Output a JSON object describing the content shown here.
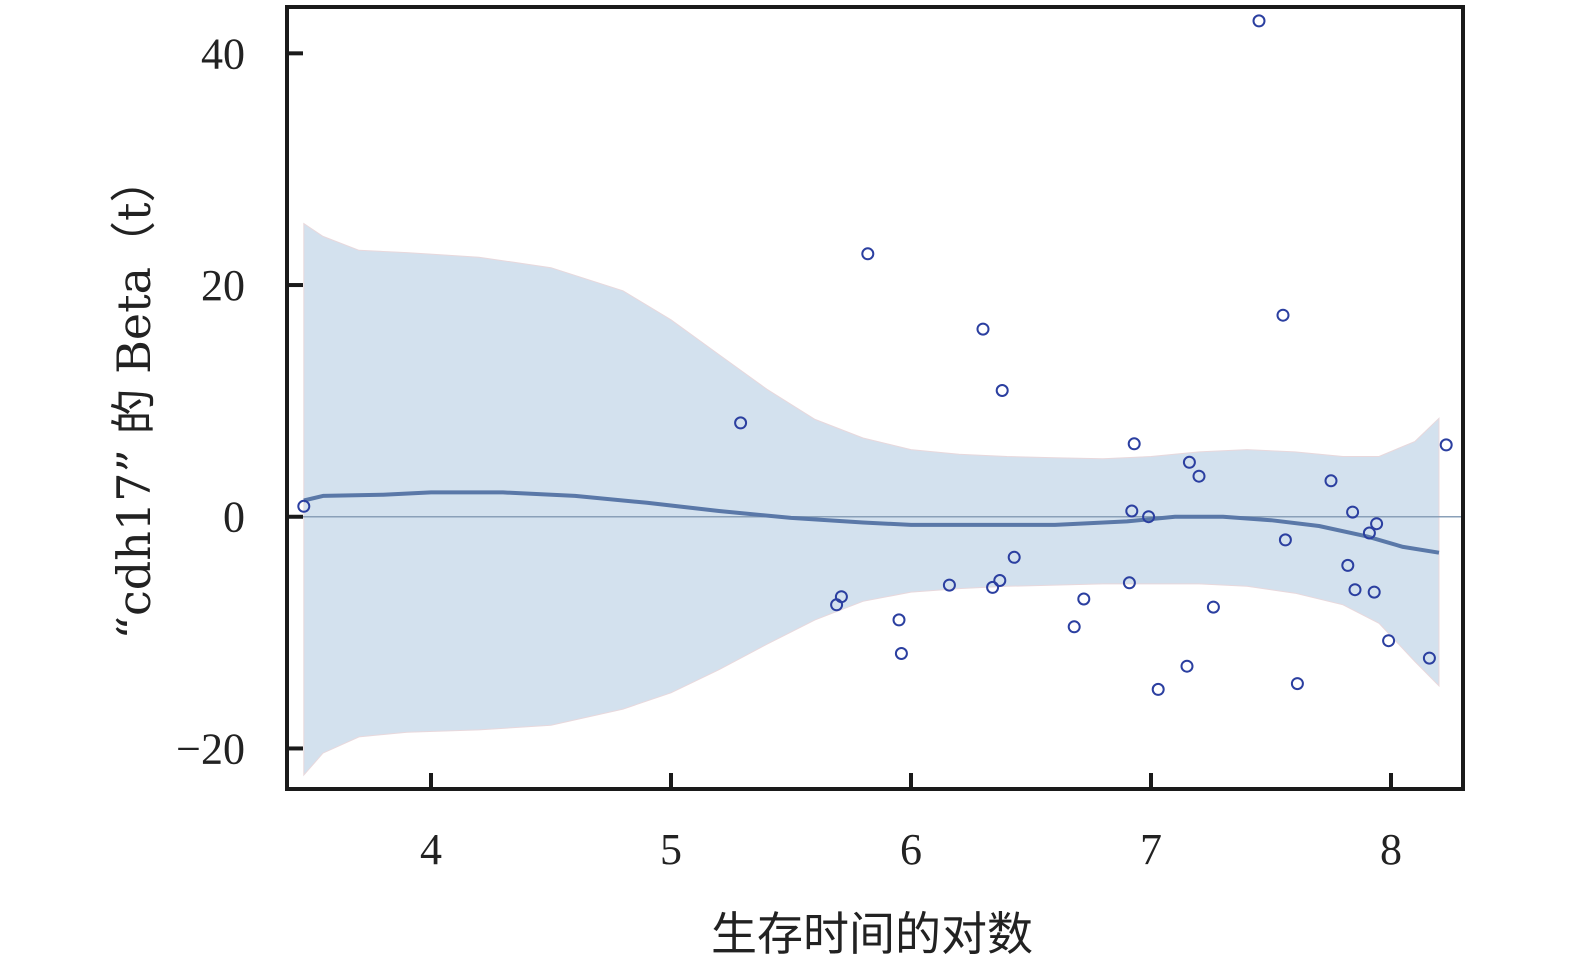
{
  "chart_data": {
    "type": "scatter",
    "title": "",
    "xlabel": "生存时间的对数",
    "ylabel": "“cdh17” 的 Beta（t）",
    "xlim": [
      3.4,
      8.3
    ],
    "ylim": [
      -23.5,
      44
    ],
    "x_ticks": [
      4,
      5,
      6,
      7,
      8
    ],
    "x_tick_labels": [
      "4",
      "5",
      "6",
      "7",
      "8"
    ],
    "y_ticks": [
      -20,
      0,
      20,
      40
    ],
    "y_tick_labels": [
      "−20",
      "0",
      "20",
      "40"
    ],
    "grid": false,
    "legend": "none",
    "zero_line": 0,
    "colors": {
      "points": "#2b3fa0",
      "smooth_line": "#5a78a8",
      "band": "#d3e1ee",
      "zero_line": "#8aa0b8",
      "axis": "#1a1a1a"
    },
    "points": [
      {
        "x": 3.47,
        "y": 0.9
      },
      {
        "x": 5.29,
        "y": 8.1
      },
      {
        "x": 5.69,
        "y": -7.6
      },
      {
        "x": 5.71,
        "y": -6.9
      },
      {
        "x": 5.82,
        "y": 22.7
      },
      {
        "x": 5.95,
        "y": -8.9
      },
      {
        "x": 5.96,
        "y": -11.8
      },
      {
        "x": 6.16,
        "y": -5.9
      },
      {
        "x": 6.3,
        "y": 16.2
      },
      {
        "x": 6.34,
        "y": -6.1
      },
      {
        "x": 6.37,
        "y": -5.5
      },
      {
        "x": 6.38,
        "y": 10.9
      },
      {
        "x": 6.43,
        "y": -3.5
      },
      {
        "x": 6.68,
        "y": -9.5
      },
      {
        "x": 6.72,
        "y": -7.1
      },
      {
        "x": 6.91,
        "y": -5.7
      },
      {
        "x": 6.92,
        "y": 0.5
      },
      {
        "x": 6.93,
        "y": 6.3
      },
      {
        "x": 6.99,
        "y": 0.0
      },
      {
        "x": 7.03,
        "y": -14.9
      },
      {
        "x": 7.15,
        "y": -12.9
      },
      {
        "x": 7.16,
        "y": 4.7
      },
      {
        "x": 7.2,
        "y": 3.5
      },
      {
        "x": 7.26,
        "y": -7.8
      },
      {
        "x": 7.45,
        "y": 42.8
      },
      {
        "x": 7.55,
        "y": 17.4
      },
      {
        "x": 7.56,
        "y": -2.0
      },
      {
        "x": 7.61,
        "y": -14.4
      },
      {
        "x": 7.75,
        "y": 3.1
      },
      {
        "x": 7.82,
        "y": -4.2
      },
      {
        "x": 7.84,
        "y": 0.4
      },
      {
        "x": 7.85,
        "y": -6.3
      },
      {
        "x": 7.91,
        "y": -1.4
      },
      {
        "x": 7.93,
        "y": -6.5
      },
      {
        "x": 7.94,
        "y": -0.6
      },
      {
        "x": 7.99,
        "y": -10.7
      },
      {
        "x": 8.16,
        "y": -12.2
      },
      {
        "x": 8.23,
        "y": 6.2
      }
    ],
    "smooth_line": {
      "x": [
        3.47,
        3.55,
        3.8,
        4.0,
        4.3,
        4.6,
        4.9,
        5.2,
        5.5,
        5.8,
        6.0,
        6.3,
        6.6,
        6.9,
        7.1,
        7.3,
        7.5,
        7.7,
        7.9,
        8.05,
        8.2
      ],
      "y": [
        1.4,
        1.8,
        1.9,
        2.1,
        2.1,
        1.8,
        1.2,
        0.5,
        -0.1,
        -0.5,
        -0.7,
        -0.7,
        -0.7,
        -0.4,
        0.0,
        0.0,
        -0.3,
        -0.8,
        -1.7,
        -2.6,
        -3.1
      ]
    },
    "confidence_band": {
      "x": [
        3.47,
        3.55,
        3.7,
        3.9,
        4.2,
        4.5,
        4.8,
        5.0,
        5.2,
        5.4,
        5.6,
        5.8,
        6.0,
        6.2,
        6.4,
        6.6,
        6.8,
        7.0,
        7.2,
        7.4,
        7.6,
        7.8,
        7.95,
        8.1,
        8.2
      ],
      "upper": [
        25.3,
        24.2,
        23.0,
        22.8,
        22.4,
        21.5,
        19.5,
        17.0,
        14.0,
        11.0,
        8.4,
        6.8,
        5.8,
        5.4,
        5.2,
        5.1,
        5.0,
        5.2,
        5.6,
        5.8,
        5.6,
        5.2,
        5.2,
        6.5,
        8.5
      ],
      "lower": [
        -22.3,
        -20.4,
        -19.0,
        -18.6,
        -18.4,
        -18.0,
        -16.6,
        -15.2,
        -13.2,
        -11.0,
        -8.9,
        -7.3,
        -6.5,
        -6.2,
        -6.0,
        -5.9,
        -5.8,
        -5.8,
        -5.8,
        -6.0,
        -6.6,
        -7.6,
        -9.2,
        -12.5,
        -14.6
      ]
    }
  }
}
